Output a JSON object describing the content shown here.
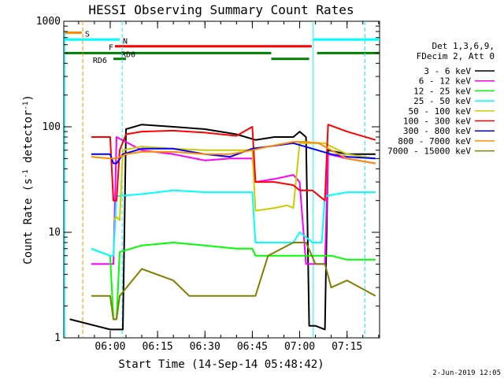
{
  "chart_data": {
    "type": "line",
    "title": "HESSI Observing Summary Count Rates",
    "xlabel": "Start Time (14-Sep-14 05:48:42)",
    "ylabel": "Count Rate (s⁻¹ detector⁻¹)",
    "ylabel_parts": [
      "Count Rate (s",
      "-1",
      " detector",
      "-1",
      ")"
    ],
    "yscale": "log",
    "ylim": [
      1,
      1000
    ],
    "xlim_minutes": [
      5.3,
      105.3
    ],
    "x_ticks": [
      {
        "label": "06:00",
        "min": 20
      },
      {
        "label": "06:15",
        "min": 35
      },
      {
        "label": "06:30",
        "min": 50
      },
      {
        "label": "06:45",
        "min": 65
      },
      {
        "label": "07:00",
        "min": 80
      },
      {
        "label": "07:15",
        "min": 95
      }
    ],
    "y_ticks": [
      {
        "label": "1",
        "value": 1
      },
      {
        "label": "10",
        "value": 10
      },
      {
        "label": "100",
        "value": 100
      },
      {
        "label": "1000",
        "value": 1000
      }
    ],
    "legend_header": [
      "Det 1,3,6,9,",
      "FDecim 2, Att 0"
    ],
    "legend_placement": "right",
    "series": [
      {
        "name": "3 - 6 keV",
        "color": "#000000",
        "points": [
          [
            7.2,
            1.5
          ],
          [
            20,
            1.2
          ],
          [
            24,
            1.2
          ],
          [
            25,
            95
          ],
          [
            30,
            105
          ],
          [
            40,
            100
          ],
          [
            50,
            95
          ],
          [
            60,
            85
          ],
          [
            66,
            75
          ],
          [
            72,
            80
          ],
          [
            78,
            80
          ],
          [
            80,
            90
          ],
          [
            82,
            80
          ],
          [
            83,
            1.3
          ],
          [
            85,
            1.3
          ],
          [
            88,
            1.2
          ],
          [
            89,
            60
          ],
          [
            95,
            55
          ],
          [
            104,
            55
          ]
        ]
      },
      {
        "name": "6 - 12 keV",
        "color": "#ff00ff",
        "points": [
          [
            14,
            5
          ],
          [
            20,
            5
          ],
          [
            21,
            5
          ],
          [
            22,
            80
          ],
          [
            30,
            60
          ],
          [
            40,
            55
          ],
          [
            50,
            48
          ],
          [
            58,
            50
          ],
          [
            65,
            50
          ],
          [
            66,
            30
          ],
          [
            72,
            32
          ],
          [
            78,
            35
          ],
          [
            80,
            30
          ],
          [
            82,
            5
          ],
          [
            85,
            5
          ],
          [
            88,
            5
          ],
          [
            89,
            55
          ],
          [
            95,
            50
          ],
          [
            104,
            45
          ]
        ]
      },
      {
        "name": "12 - 25 keV",
        "color": "#00ff00",
        "points": [
          [
            14,
            7
          ],
          [
            20,
            6
          ],
          [
            21,
            1.5
          ],
          [
            22,
            1.5
          ],
          [
            23,
            6.5
          ],
          [
            30,
            7.5
          ],
          [
            40,
            8
          ],
          [
            50,
            7.5
          ],
          [
            60,
            7
          ],
          [
            65,
            7
          ],
          [
            66,
            6
          ],
          [
            72,
            6
          ],
          [
            78,
            6
          ],
          [
            80,
            6
          ],
          [
            85,
            6
          ],
          [
            90,
            6
          ],
          [
            95,
            5.5
          ],
          [
            104,
            5.5
          ]
        ]
      },
      {
        "name": "25 - 50 keV",
        "color": "#00ffff",
        "points": [
          [
            14,
            7
          ],
          [
            20,
            6
          ],
          [
            21,
            6
          ],
          [
            22,
            22
          ],
          [
            30,
            23
          ],
          [
            40,
            25
          ],
          [
            50,
            24
          ],
          [
            58,
            24
          ],
          [
            65,
            24
          ],
          [
            66,
            8
          ],
          [
            72,
            8
          ],
          [
            78,
            8
          ],
          [
            80,
            10
          ],
          [
            82,
            9
          ],
          [
            84,
            8
          ],
          [
            87,
            8
          ],
          [
            88,
            22
          ],
          [
            95,
            24
          ],
          [
            104,
            24
          ]
        ]
      },
      {
        "name": "50 - 100 keV",
        "color": "#cccc00",
        "points": [
          [
            21,
            13
          ],
          [
            22,
            14
          ],
          [
            23,
            13
          ],
          [
            24,
            60
          ],
          [
            30,
            65
          ],
          [
            40,
            62
          ],
          [
            50,
            60
          ],
          [
            58,
            60
          ],
          [
            65,
            60
          ],
          [
            66,
            16
          ],
          [
            72,
            17
          ],
          [
            76,
            18
          ],
          [
            78,
            17
          ],
          [
            80,
            70
          ],
          [
            84,
            70
          ],
          [
            88,
            70
          ],
          [
            90,
            65
          ],
          [
            95,
            55
          ],
          [
            104,
            50
          ]
        ]
      },
      {
        "name": "100 - 300 keV",
        "color": "#ff0000",
        "points": [
          [
            14,
            80
          ],
          [
            20,
            80
          ],
          [
            21,
            20
          ],
          [
            22,
            20
          ],
          [
            23,
            60
          ],
          [
            25,
            85
          ],
          [
            30,
            90
          ],
          [
            40,
            92
          ],
          [
            50,
            88
          ],
          [
            55,
            85
          ],
          [
            60,
            82
          ],
          [
            65,
            100
          ],
          [
            66,
            30
          ],
          [
            72,
            30
          ],
          [
            78,
            28
          ],
          [
            80,
            25
          ],
          [
            84,
            25
          ],
          [
            88,
            20
          ],
          [
            89,
            105
          ],
          [
            95,
            90
          ],
          [
            104,
            75
          ]
        ]
      },
      {
        "name": "300 - 800 keV",
        "color": "#0000ff",
        "points": [
          [
            14,
            55
          ],
          [
            20,
            55
          ],
          [
            21,
            45
          ],
          [
            22,
            45
          ],
          [
            24,
            55
          ],
          [
            30,
            62
          ],
          [
            40,
            62
          ],
          [
            50,
            55
          ],
          [
            58,
            52
          ],
          [
            65,
            62
          ],
          [
            70,
            65
          ],
          [
            78,
            70
          ],
          [
            84,
            62
          ],
          [
            90,
            55
          ],
          [
            95,
            52
          ],
          [
            104,
            50
          ]
        ]
      },
      {
        "name": "800 - 7000 keV",
        "color": "#ff8c00",
        "points": [
          [
            14,
            52
          ],
          [
            20,
            50
          ],
          [
            21,
            50
          ],
          [
            22,
            50
          ],
          [
            25,
            55
          ],
          [
            30,
            58
          ],
          [
            40,
            58
          ],
          [
            50,
            55
          ],
          [
            58,
            55
          ],
          [
            65,
            60
          ],
          [
            70,
            65
          ],
          [
            78,
            72
          ],
          [
            82,
            72
          ],
          [
            86,
            70
          ],
          [
            90,
            60
          ],
          [
            95,
            50
          ],
          [
            104,
            45
          ]
        ]
      },
      {
        "name": "7000 - 15000 keV",
        "color": "#808000",
        "points": [
          [
            14,
            2.5
          ],
          [
            20,
            2.5
          ],
          [
            21,
            1.5
          ],
          [
            22,
            1.5
          ],
          [
            23,
            2.5
          ],
          [
            30,
            4.5
          ],
          [
            40,
            3.5
          ],
          [
            45,
            2.5
          ],
          [
            50,
            2.5
          ],
          [
            58,
            2.5
          ],
          [
            66,
            2.5
          ],
          [
            70,
            6
          ],
          [
            78,
            8
          ],
          [
            82,
            8
          ],
          [
            85,
            5
          ],
          [
            88,
            5
          ],
          [
            90,
            3
          ],
          [
            95,
            3.5
          ],
          [
            104,
            2.5
          ]
        ]
      }
    ],
    "state_bars": [
      {
        "label": "S",
        "color": "#ff8c00",
        "value": 780,
        "x1": 5.5,
        "x2": 11,
        "label_at": 12
      },
      {
        "label": "N",
        "color": "#00ffff",
        "value": 670,
        "x1": 5.5,
        "x2": 23,
        "label_at": 24,
        "x1b": 84.3,
        "x2b": 105.3
      },
      {
        "label": "F",
        "color": "#ff0000",
        "value": 580,
        "x1": 21.5,
        "x2": 83.8,
        "label_at": 19.5
      },
      {
        "label": "RD0",
        "color": "#008000",
        "value": 500,
        "x1": 5.5,
        "x2": 71,
        "label_at": 23.5,
        "x1b": 85.5,
        "x2b": 105.3
      },
      {
        "label": "RD6",
        "color": "#008000",
        "value": 440,
        "x1": 21,
        "x2": 25,
        "label_at": 14.5,
        "x1b": 71,
        "x2b": 83
      }
    ],
    "vertical_markers": [
      {
        "min": 11.3,
        "color": "#ff8c00",
        "style": "dashed"
      },
      {
        "min": 23.8,
        "color": "#00ffff",
        "style": "dashed"
      },
      {
        "min": 84.3,
        "color": "#00ffff",
        "style": "solid"
      },
      {
        "min": 100.7,
        "color": "#00ffff",
        "style": "dashed"
      }
    ],
    "cyan_edge_trace": true,
    "grid": false
  },
  "footer_date": "2-Jun-2019 12:05"
}
